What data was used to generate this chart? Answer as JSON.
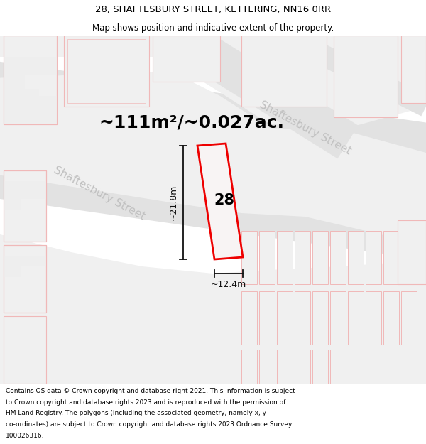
{
  "title_line1": "28, SHAFTESBURY STREET, KETTERING, NN16 0RR",
  "title_line2": "Map shows position and indicative extent of the property.",
  "area_label": "~111m²/~0.027ac.",
  "property_number": "28",
  "width_label": "~12.4m",
  "height_label": "~21.8m",
  "street_label_upper": "Shaftesbury Street",
  "street_label_lower": "Shaftesbury Street",
  "footer_lines": [
    "Contains OS data © Crown copyright and database right 2021. This information is subject",
    "to Crown copyright and database rights 2023 and is reproduced with the permission of",
    "HM Land Registry. The polygons (including the associated geometry, namely x, y",
    "co-ordinates) are subject to Crown copyright and database rights 2023 Ordnance Survey",
    "100026316."
  ],
  "bg_color": "#eeeeee",
  "road_color": "#e2e2e2",
  "block_color": "#f0f0f0",
  "building_outline_color": "#f0b8b8",
  "property_color": "#ee0000",
  "property_fill": "#f8f4f4",
  "dim_color": "#111111",
  "street_label_color": "#c0c0c0",
  "title_fontsize": 9.5,
  "subtitle_fontsize": 8.5,
  "area_fontsize": 18,
  "dim_fontsize": 9,
  "street_fontsize": 11,
  "number_fontsize": 15,
  "footer_fontsize": 6.5
}
